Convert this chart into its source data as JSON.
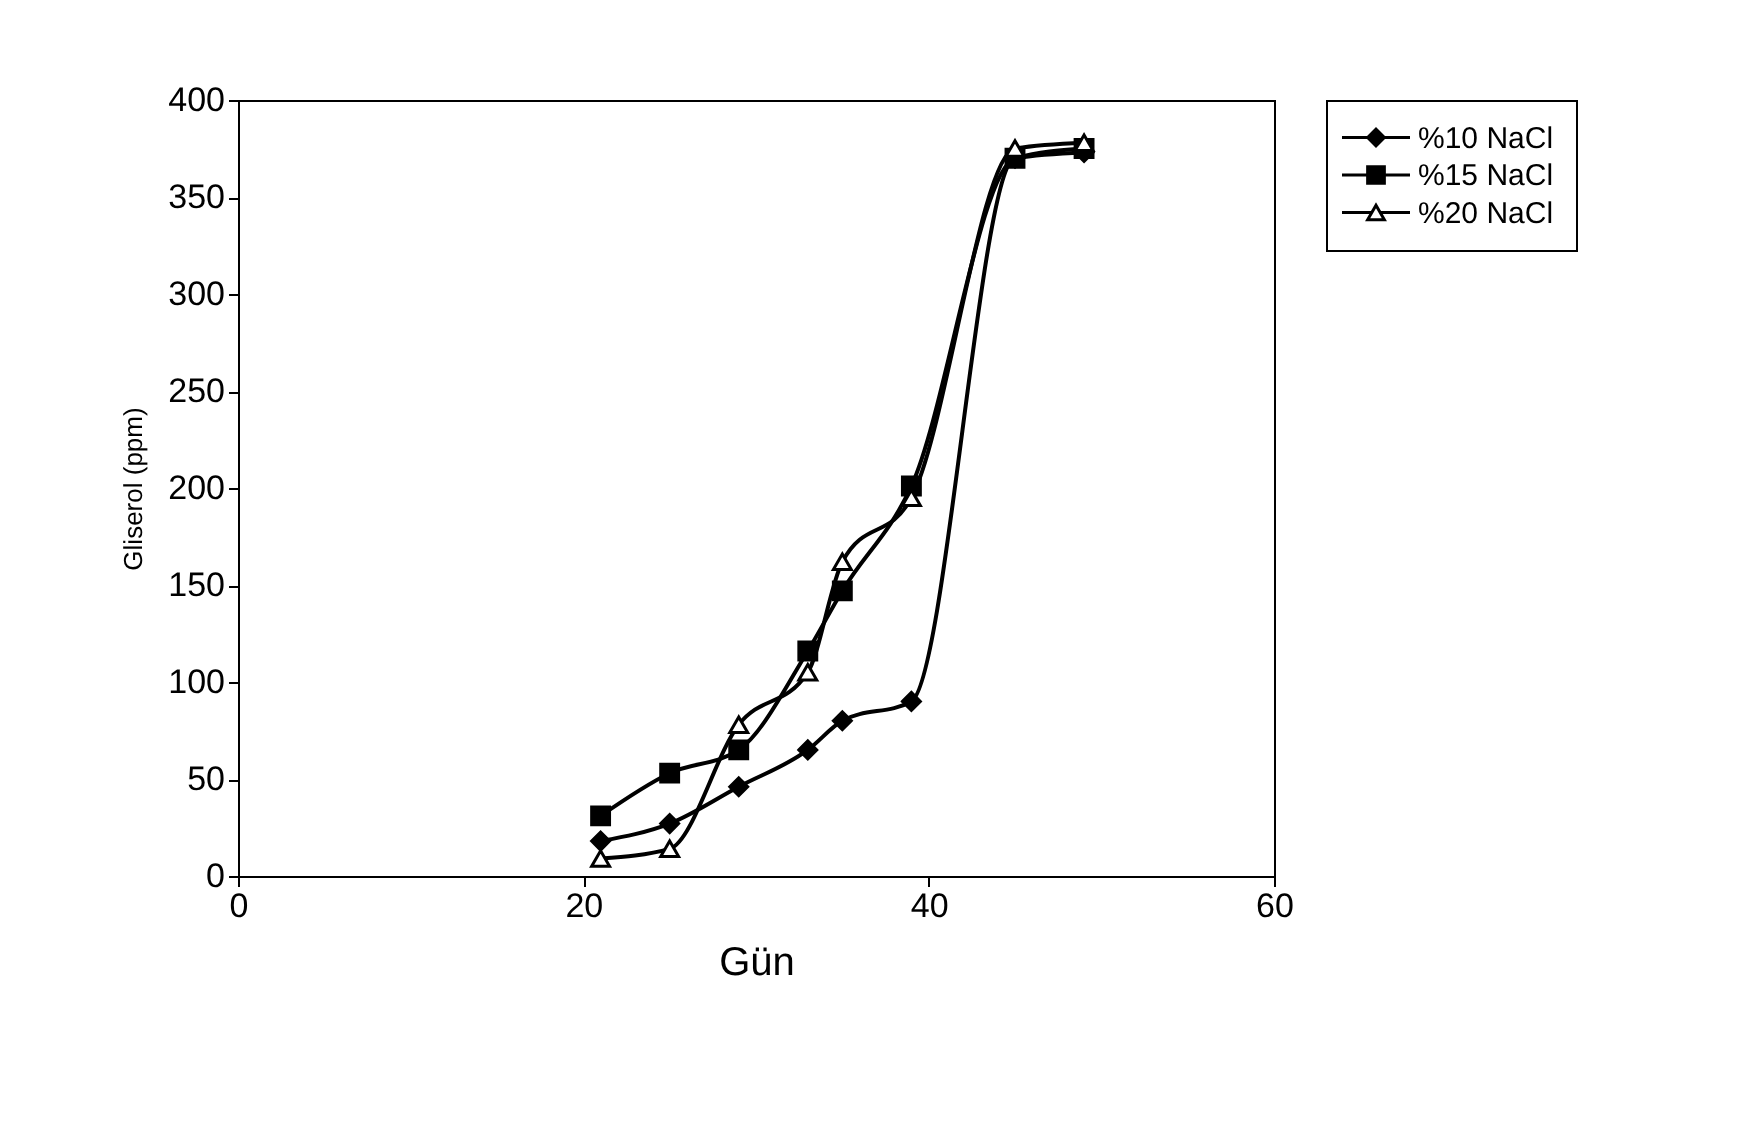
{
  "chart_data": {
    "type": "line",
    "xlabel": "Gün",
    "ylabel": "Gliserol (ppm)",
    "x": [
      21,
      25,
      29,
      33,
      35,
      39,
      45,
      49
    ],
    "series": [
      {
        "name": "%10 NaCl",
        "color": "#000000",
        "marker": "diamond",
        "values": [
          18,
          27,
          46,
          65,
          80,
          90,
          370,
          373
        ]
      },
      {
        "name": "%15 NaCl",
        "color": "#000000",
        "marker": "square",
        "values": [
          31,
          53,
          65,
          116,
          147,
          201,
          370,
          375
        ]
      },
      {
        "name": "%20 NaCl",
        "color": "#000000",
        "marker": "triangle",
        "values": [
          9,
          14,
          78,
          105,
          162,
          195,
          375,
          378
        ]
      }
    ],
    "xlim": [
      0,
      60
    ],
    "xticks": [
      0,
      20,
      40,
      60
    ],
    "ylim": [
      0,
      400
    ],
    "yticks": [
      0,
      50,
      100,
      150,
      200,
      250,
      300,
      350,
      400
    ],
    "grid": false,
    "legend": "right",
    "line_style": "solid"
  }
}
